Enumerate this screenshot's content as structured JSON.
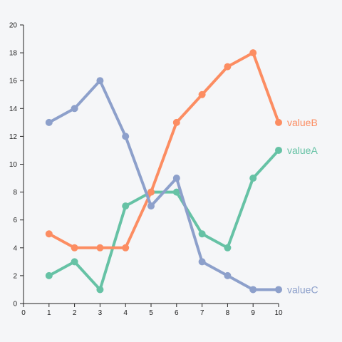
{
  "chart_data": {
    "type": "line",
    "title": "",
    "xlabel": "",
    "ylabel": "",
    "xlim": [
      0,
      10
    ],
    "ylim": [
      0,
      20
    ],
    "x_ticks": [
      0,
      1,
      2,
      3,
      4,
      5,
      6,
      7,
      8,
      9,
      10
    ],
    "y_ticks": [
      0,
      2,
      4,
      6,
      8,
      10,
      12,
      14,
      16,
      18,
      20
    ],
    "grid": false,
    "legend": "direct-labels-at-line-ends",
    "x": [
      1,
      2,
      3,
      4,
      5,
      6,
      7,
      8,
      9,
      10
    ],
    "series": [
      {
        "name": "valueA",
        "color": "#66c2a5",
        "values": [
          2,
          3,
          1,
          7,
          8,
          8,
          5,
          4,
          9,
          11
        ]
      },
      {
        "name": "valueB",
        "color": "#fc8d62",
        "values": [
          5,
          4,
          4,
          4,
          8,
          13,
          15,
          17,
          18,
          13
        ]
      },
      {
        "name": "valueC",
        "color": "#8da0cb",
        "values": [
          13,
          14,
          16,
          12,
          7,
          9,
          3,
          2,
          1,
          1
        ]
      }
    ]
  }
}
